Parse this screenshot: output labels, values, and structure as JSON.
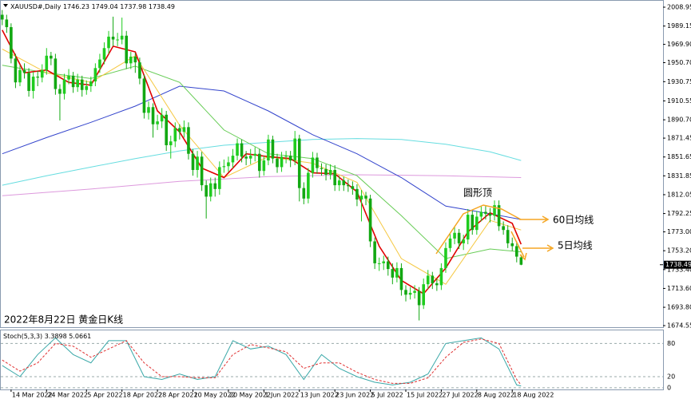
{
  "chart_data": {
    "type": "candlestick",
    "symbol": "XAUUSD#,Daily",
    "caption": "2022年8月22日 黄金日K线",
    "annotations": {
      "round_top": "圆形顶",
      "ma60": "60日均线",
      "ma5": "5日均线"
    },
    "up_color": "#1fcc1f",
    "down_color": "#12a812",
    "candles": {
      "open": [
        2001,
        1996,
        1988,
        1955,
        1930,
        1943,
        1940,
        1921,
        1936,
        1935,
        1943,
        1958,
        1955,
        1923,
        1918,
        1933,
        1937,
        1925,
        1933,
        1922,
        1926,
        1931,
        1945,
        1954,
        1966,
        1978,
        1975,
        1975,
        1979,
        1950,
        1957,
        1951,
        1934,
        1898,
        1904,
        1886,
        1889,
        1896,
        1864,
        1868,
        1882,
        1878,
        1883,
        1855,
        1838,
        1852,
        1822,
        1810,
        1824,
        1818,
        1841,
        1842,
        1846,
        1853,
        1866,
        1852,
        1850,
        1853,
        1855,
        1837,
        1848,
        1870,
        1850,
        1841,
        1852,
        1853,
        1848,
        1871,
        1819,
        1808,
        1835,
        1851,
        1840,
        1839,
        1833,
        1838,
        1822,
        1827,
        1822,
        1821,
        1818,
        1807,
        1811,
        1808,
        1763,
        1740,
        1740,
        1742,
        1734,
        1725,
        1735,
        1712,
        1707,
        1709,
        1711,
        1696,
        1718,
        1727,
        1719,
        1717,
        1735,
        1756,
        1766,
        1772,
        1761,
        1765,
        1791,
        1775,
        1789,
        1794,
        1792,
        1790,
        1801,
        1779,
        1775,
        1761,
        1758,
        1746.23
      ],
      "high": [
        2006,
        2001,
        1992,
        1960,
        1948,
        1950,
        1945,
        1941,
        1942,
        1949,
        1966,
        1962,
        1960,
        1928,
        1939,
        1944,
        1941,
        1939,
        1937,
        1932,
        1936,
        1950,
        1960,
        1972,
        1984,
        1999,
        1982,
        1998,
        1984,
        1962,
        1961,
        1956,
        1938,
        1910,
        1908,
        1896,
        1903,
        1900,
        1874,
        1888,
        1886,
        1890,
        1888,
        1860,
        1858,
        1857,
        1827,
        1830,
        1830,
        1847,
        1849,
        1852,
        1860,
        1871,
        1870,
        1858,
        1860,
        1862,
        1860,
        1853,
        1875,
        1874,
        1855,
        1857,
        1858,
        1858,
        1879,
        1875,
        1825,
        1840,
        1857,
        1856,
        1845,
        1844,
        1844,
        1843,
        1832,
        1831,
        1828,
        1826,
        1823,
        1817,
        1815,
        1812,
        1767,
        1746,
        1748,
        1747,
        1740,
        1741,
        1740,
        1717,
        1715,
        1717,
        1715,
        1724,
        1733,
        1731,
        1724,
        1740,
        1762,
        1772,
        1779,
        1776,
        1770,
        1797,
        1795,
        1795,
        1800,
        1800,
        1798,
        1806,
        1806,
        1784,
        1780,
        1767,
        1763,
        1749.04
      ],
      "low": [
        1990,
        1982,
        1950,
        1924,
        1926,
        1934,
        1915,
        1913,
        1926,
        1930,
        1938,
        1948,
        1917,
        1890,
        1912,
        1928,
        1919,
        1920,
        1915,
        1917,
        1920,
        1926,
        1940,
        1949,
        1960,
        1968,
        1968,
        1970,
        1944,
        1944,
        1940,
        1928,
        1892,
        1891,
        1872,
        1880,
        1882,
        1858,
        1850,
        1862,
        1870,
        1872,
        1849,
        1832,
        1830,
        1816,
        1787,
        1805,
        1810,
        1812,
        1835,
        1836,
        1840,
        1848,
        1846,
        1843,
        1844,
        1847,
        1830,
        1832,
        1843,
        1845,
        1835,
        1836,
        1845,
        1841,
        1843,
        1805,
        1802,
        1803,
        1830,
        1834,
        1832,
        1827,
        1828,
        1816,
        1816,
        1816,
        1815,
        1812,
        1800,
        1784,
        1801,
        1757,
        1734,
        1732,
        1733,
        1727,
        1718,
        1720,
        1706,
        1700,
        1702,
        1703,
        1680,
        1692,
        1713,
        1713,
        1711,
        1712,
        1730,
        1752,
        1760,
        1755,
        1754,
        1760,
        1770,
        1770,
        1784,
        1786,
        1783,
        1785,
        1774,
        1770,
        1756,
        1753,
        1741,
        1737.98
      ],
      "close": [
        1996,
        1988,
        1955,
        1930,
        1943,
        1940,
        1921,
        1936,
        1935,
        1943,
        1958,
        1955,
        1923,
        1918,
        1933,
        1937,
        1925,
        1933,
        1922,
        1926,
        1931,
        1945,
        1954,
        1966,
        1978,
        1975,
        1975,
        1979,
        1950,
        1957,
        1951,
        1934,
        1898,
        1904,
        1886,
        1889,
        1896,
        1864,
        1868,
        1882,
        1878,
        1883,
        1855,
        1838,
        1852,
        1822,
        1810,
        1824,
        1818,
        1841,
        1842,
        1846,
        1853,
        1866,
        1852,
        1850,
        1853,
        1855,
        1837,
        1848,
        1870,
        1850,
        1841,
        1852,
        1853,
        1848,
        1871,
        1819,
        1808,
        1835,
        1851,
        1840,
        1839,
        1833,
        1838,
        1822,
        1827,
        1822,
        1821,
        1818,
        1807,
        1811,
        1808,
        1763,
        1740,
        1740,
        1742,
        1734,
        1725,
        1735,
        1712,
        1707,
        1709,
        1711,
        1696,
        1718,
        1727,
        1719,
        1717,
        1735,
        1756,
        1766,
        1772,
        1761,
        1765,
        1791,
        1775,
        1789,
        1794,
        1792,
        1790,
        1801,
        1779,
        1775,
        1761,
        1758,
        1747,
        1738.49
      ]
    },
    "xlim": [
      -0.5,
      149
    ],
    "xticks": [
      {
        "value": 2,
        "label": "14 Mar 2022"
      },
      {
        "value": 10,
        "label": "24 Mar 2022"
      },
      {
        "value": 19,
        "label": "5 Apr 2022"
      },
      {
        "value": 27,
        "label": "18 Apr 2022"
      },
      {
        "value": 35,
        "label": "28 Apr 2022"
      },
      {
        "value": 43,
        "label": "10 May 2022"
      },
      {
        "value": 51,
        "label": "20 May 2022"
      },
      {
        "value": 59,
        "label": "1 Jun 2022"
      },
      {
        "value": 67,
        "label": "13 Jun 2022"
      },
      {
        "value": 75,
        "label": "23 Jun 2022"
      },
      {
        "value": 83,
        "label": "5 Jul 2022"
      },
      {
        "value": 91,
        "label": "15 Jul 2022"
      },
      {
        "value": 99,
        "label": "27 Jul 2022"
      },
      {
        "value": 107,
        "label": "8 Aug 2022"
      },
      {
        "value": 115,
        "label": "18 Aug 2022"
      }
    ],
    "ylim": [
      1672.9,
      2016.5
    ],
    "yticks": [
      2008.95,
      1989.15,
      {
        "value": 1969.9,
        "label": "1969.90"
      },
      {
        "value": 1950.7,
        "label": "1950.70"
      },
      1930.75,
      1910.55,
      {
        "value": 1890.7,
        "label": "1890.70"
      },
      1871.45,
      1851.65,
      1831.85,
      1812.05,
      1792.25,
      {
        "value": 1773,
        "label": "1773.00"
      },
      {
        "value": 1753.2,
        "label": "1753.20"
      },
      {
        "value": 1733.4,
        "label": "1733.40"
      },
      {
        "value": 1713.6,
        "label": "1713.60"
      },
      {
        "value": 1693.8,
        "label": "1693.80"
      },
      1674.55
    ],
    "lines": [
      {
        "color": "#dd99dd",
        "x": [
          0,
          20,
          40,
          60,
          80,
          100,
          117
        ],
        "values": [
          1811,
          1818,
          1826,
          1831,
          1833,
          1832,
          1830
        ]
      },
      {
        "color": "#66dde0",
        "x": [
          0,
          10,
          20,
          30,
          40,
          50,
          60,
          70,
          80,
          90,
          100,
          110,
          117
        ],
        "values": [
          1822,
          1832,
          1841,
          1850,
          1858,
          1864,
          1867,
          1870,
          1871,
          1870,
          1865,
          1857,
          1848
        ]
      },
      {
        "color": "#3344cc",
        "x": [
          0,
          10,
          20,
          30,
          40,
          50,
          60,
          70,
          80,
          90,
          100,
          110,
          117
        ],
        "values": [
          1855,
          1872,
          1888,
          1905,
          1926,
          1921,
          1900,
          1875,
          1855,
          1830,
          1800,
          1792,
          1786
        ]
      },
      {
        "color": "#66cc55",
        "x": [
          0,
          10,
          20,
          30,
          40,
          50,
          60,
          70,
          80,
          90,
          100,
          110,
          117
        ],
        "values": [
          1948,
          1940,
          1934,
          1947,
          1930,
          1880,
          1855,
          1850,
          1832,
          1790,
          1745,
          1755,
          1752
        ]
      },
      {
        "color": "#f5c842",
        "x": [
          0,
          10,
          20,
          30,
          40,
          50,
          60,
          70,
          80,
          90,
          100,
          110,
          117
        ],
        "values": [
          1965,
          1940,
          1930,
          1958,
          1885,
          1830,
          1852,
          1845,
          1825,
          1745,
          1718,
          1785,
          1775
        ]
      },
      {
        "color": "#e00000",
        "x": [
          0,
          5,
          10,
          15,
          20,
          25,
          30,
          35,
          40,
          45,
          50,
          55,
          60,
          65,
          70,
          75,
          80,
          85,
          90,
          95,
          100,
          105,
          110,
          115,
          117
        ],
        "values": [
          1985,
          1940,
          1943,
          1930,
          1927,
          1968,
          1962,
          1900,
          1878,
          1840,
          1830,
          1855,
          1852,
          1850,
          1835,
          1834,
          1815,
          1758,
          1722,
          1708,
          1735,
          1773,
          1793,
          1782,
          1760
        ]
      }
    ],
    "indicator": {
      "title": "Stoch(5,3,3)",
      "ylim": [
        -3,
        105
      ],
      "yticks": [
        80,
        20,
        0
      ],
      "series": [
        {
          "color": "#3aa8a8",
          "x": [
            0,
            4,
            8,
            12,
            16,
            20,
            24,
            28,
            32,
            36,
            40,
            44,
            48,
            52,
            56,
            60,
            64,
            68,
            72,
            76,
            80,
            84,
            88,
            92,
            96,
            100,
            104,
            108,
            112,
            116,
            117
          ],
          "values": [
            40,
            20,
            60,
            90,
            60,
            45,
            85,
            85,
            20,
            15,
            25,
            15,
            20,
            85,
            70,
            75,
            60,
            15,
            60,
            35,
            20,
            10,
            5,
            10,
            25,
            80,
            85,
            90,
            70,
            5,
            3.3898
          ]
        },
        {
          "color": "#e03030",
          "dashed": true,
          "x": [
            0,
            4,
            8,
            12,
            16,
            20,
            24,
            28,
            32,
            36,
            40,
            44,
            48,
            52,
            56,
            60,
            64,
            68,
            72,
            76,
            80,
            84,
            88,
            92,
            96,
            100,
            104,
            108,
            112,
            116,
            117
          ],
          "values": [
            50,
            30,
            45,
            80,
            75,
            55,
            70,
            85,
            45,
            20,
            20,
            18,
            18,
            60,
            78,
            72,
            65,
            35,
            45,
            45,
            28,
            15,
            8,
            8,
            18,
            55,
            82,
            88,
            80,
            15,
            5.0661
          ]
        }
      ]
    }
  }
}
